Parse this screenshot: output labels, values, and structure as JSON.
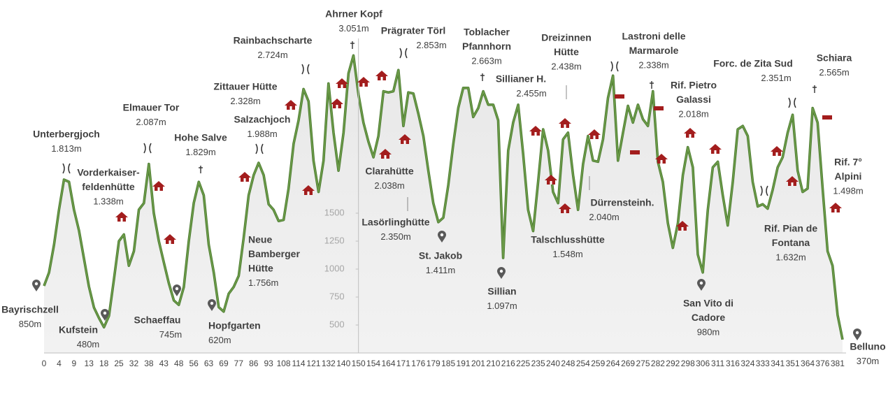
{
  "chart_data": {
    "type": "area",
    "color": "#6b9a48",
    "fill": "#f2f2f2",
    "categories": [
      0,
      null,
      null,
      4,
      null,
      null,
      9,
      null,
      null,
      13,
      null,
      null,
      18,
      null,
      null,
      25,
      null,
      null,
      32,
      null,
      null,
      38,
      null,
      null,
      43,
      null,
      null,
      48,
      null,
      null,
      56,
      null,
      null,
      63,
      null,
      null,
      69,
      null,
      null,
      77,
      null,
      null,
      86,
      null,
      null,
      93,
      null,
      null,
      108,
      null,
      null,
      114,
      null,
      null,
      121,
      null,
      null,
      132,
      null,
      null,
      140,
      null,
      null,
      150,
      null,
      null,
      154,
      null,
      null,
      164,
      null,
      null,
      171,
      null,
      null,
      176,
      null,
      null,
      179,
      null,
      null,
      185,
      null,
      null,
      191,
      null,
      null,
      201,
      null,
      null,
      210,
      null,
      null,
      216,
      null,
      null,
      225,
      null,
      null,
      235,
      null,
      null,
      240,
      null,
      null,
      248,
      null,
      null,
      254,
      null,
      null,
      259,
      null,
      null,
      264,
      null,
      null,
      269,
      null,
      null,
      275,
      null,
      null,
      282,
      null,
      null,
      292,
      null,
      null,
      298,
      null,
      null,
      306,
      null,
      null,
      311,
      null,
      null,
      316,
      null,
      null,
      324,
      null,
      null,
      333,
      null,
      null,
      341,
      null,
      null,
      351,
      null,
      null,
      364,
      null,
      null,
      376,
      null,
      null,
      381,
      null
    ],
    "values": [
      850,
      969,
      1219,
      1531,
      1800,
      1780,
      1531,
      1344,
      1094,
      844,
      656,
      563,
      480,
      580,
      906,
      1250,
      1310,
      1030,
      1160,
      1531,
      1590,
      1940,
      1500,
      1250,
      1060,
      875,
      720,
      680,
      840,
      1250,
      1590,
      1780,
      1660,
      1220,
      970,
      660,
      620,
      780,
      840,
      940,
      1280,
      1660,
      1840,
      1950,
      1840,
      1580,
      1530,
      1430,
      1440,
      1720,
      2120,
      2330,
      2610,
      2500,
      1970,
      1690,
      1970,
      2660,
      2220,
      1880,
      2220,
      2750,
      2910,
      2560,
      2310,
      2140,
      2000,
      2190,
      2590,
      2580,
      2590,
      2780,
      2280,
      2580,
      2570,
      2390,
      2190,
      1880,
      1590,
      1420,
      1460,
      1750,
      2120,
      2440,
      2620,
      2620,
      2360,
      2440,
      2590,
      2470,
      2470,
      2330,
      1100,
      2060,
      2310,
      2470,
      2030,
      1530,
      1340,
      1780,
      2250,
      2060,
      1690,
      1590,
      2160,
      2220,
      1840,
      1530,
      1940,
      2190,
      1970,
      1960,
      2160,
      2530,
      2730,
      1970,
      2220,
      2460,
      2310,
      2470,
      2340,
      2280,
      2590,
      1960,
      1780,
      1410,
      1190,
      1410,
      1840,
      2090,
      1910,
      1130,
      970,
      1530,
      1910,
      1960,
      1660,
      1390,
      1780,
      2250,
      2280,
      2190,
      1780,
      1560,
      1580,
      1540,
      1710,
      1910,
      2000,
      2220,
      2380,
      1880,
      1690,
      1720,
      2440,
      2310,
      1720,
      1160,
      1030,
      590,
      370
    ],
    "ylim": [
      250,
      3300
    ],
    "yticks": [
      500,
      750,
      1000,
      1250,
      1500
    ],
    "y_axis_at_category": 150,
    "annotations": [
      {
        "lines": [
          "Bayrischzell"
        ],
        "elevation": "850m"
      },
      {
        "lines": [
          "Unterbergjoch"
        ],
        "elevation": "1.813m"
      },
      {
        "lines": [
          "Kufstein"
        ],
        "elevation": "480m"
      },
      {
        "lines": [
          "Vorderkaiser-",
          "feldenhütte"
        ],
        "elevation": "1.338m"
      },
      {
        "lines": [
          "Elmauer Tor"
        ],
        "elevation": "2.087m"
      },
      {
        "lines": [
          "Schaeffau"
        ],
        "elevation": "745m"
      },
      {
        "lines": [
          "Hohe Salve"
        ],
        "elevation": "1.829m"
      },
      {
        "lines": [
          "Hopfgarten"
        ],
        "elevation": "620m"
      },
      {
        "lines": [
          "Salzachjoch"
        ],
        "elevation": "1.988m"
      },
      {
        "lines": [
          "Zittauer Hütte"
        ],
        "elevation": "2.328m"
      },
      {
        "lines": [
          "Rainbachscharte"
        ],
        "elevation": "2.724m"
      },
      {
        "lines": [
          "Neue",
          "Bamberger",
          "Hütte"
        ],
        "elevation": "1.756m"
      },
      {
        "lines": [
          "Ahrner Kopf"
        ],
        "elevation": "3.051m"
      },
      {
        "lines": [
          "Prägrater Törl"
        ],
        "elevation": "2.853m"
      },
      {
        "lines": [
          "Clarahütte"
        ],
        "elevation": "2.038m"
      },
      {
        "lines": [
          "Lasörlinghütte"
        ],
        "elevation": "2.350m"
      },
      {
        "lines": [
          "Toblacher",
          "Pfannhorn"
        ],
        "elevation": "2.663m"
      },
      {
        "lines": [
          "St. Jakob"
        ],
        "elevation": "1.411m"
      },
      {
        "lines": [
          "Sillianer H."
        ],
        "elevation": "2.455m"
      },
      {
        "lines": [
          "Sillian"
        ],
        "elevation": "1.097m"
      },
      {
        "lines": [
          "Dreizinnen",
          "Hütte"
        ],
        "elevation": "2.438m"
      },
      {
        "lines": [
          "Talschlusshütte"
        ],
        "elevation": "1.548m"
      },
      {
        "lines": [
          "Dürrensteinh."
        ],
        "elevation": "2.040m"
      },
      {
        "lines": [
          "Lastroni delle",
          "Marmarole"
        ],
        "elevation": "2.338m"
      },
      {
        "lines": [
          "Rif. Pietro",
          "Galassi"
        ],
        "elevation": "2.018m"
      },
      {
        "lines": [
          "San Vito di",
          "Cadore"
        ],
        "elevation": "980m"
      },
      {
        "lines": [
          "Forc. de Zita Sud"
        ],
        "elevation": "2.351m"
      },
      {
        "lines": [
          "Schiara"
        ],
        "elevation": "2.565m"
      },
      {
        "lines": [
          "Rif. 7°",
          "Alpini"
        ],
        "elevation": "1.498m"
      },
      {
        "lines": [
          "Rif. Pian de",
          "Fontana"
        ],
        "elevation": "1.632m"
      },
      {
        "lines": [
          "Belluno"
        ],
        "elevation": "370m"
      }
    ]
  }
}
